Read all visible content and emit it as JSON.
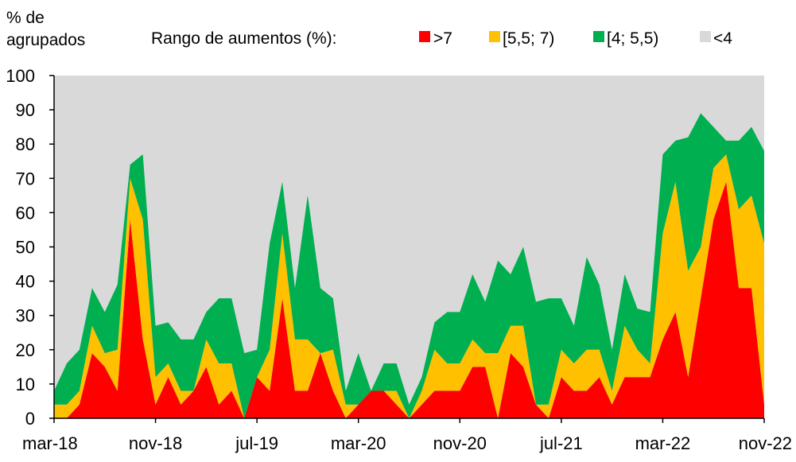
{
  "chart_data": {
    "type": "area",
    "stacked": true,
    "ylabel_lines": [
      "% de",
      "agrupados"
    ],
    "legend_title": "Rango de aumentos (%):",
    "ylim": [
      0,
      100
    ],
    "y_ticks": [
      "0",
      "10",
      "20",
      "30",
      "40",
      "50",
      "60",
      "70",
      "80",
      "90",
      "100"
    ],
    "x_tick_labels": [
      "mar-18",
      "nov-18",
      "jul-19",
      "mar-20",
      "nov-20",
      "jul-21",
      "mar-22",
      "nov-22"
    ],
    "x_tick_indices": [
      0,
      8,
      16,
      24,
      32,
      40,
      48,
      56
    ],
    "legend_placement": "top",
    "grid": false,
    "background_color": "#d9d9d9",
    "total_color": "#d9d9d9",
    "total_name": "<4",
    "series": [
      {
        "name": ">7",
        "color": "#ff0000",
        "values": [
          0,
          0,
          4,
          19,
          15,
          8,
          58,
          23,
          4,
          12,
          4,
          8,
          15,
          4,
          8,
          0,
          12,
          8,
          35,
          8,
          8,
          19,
          8,
          0,
          4,
          8,
          8,
          4,
          0,
          4,
          8,
          8,
          8,
          15,
          15,
          0,
          19,
          15,
          4,
          0,
          12,
          8,
          8,
          12,
          4,
          12,
          12,
          12,
          23,
          31,
          12,
          35,
          58,
          69,
          38,
          38,
          4
        ]
      },
      {
        "name": "[5,5; 7)",
        "color": "#ffc000",
        "values": [
          4,
          4,
          4,
          8,
          4,
          12,
          12,
          35,
          8,
          4,
          4,
          0,
          8,
          12,
          8,
          0,
          0,
          12,
          19,
          15,
          15,
          0,
          12,
          4,
          0,
          0,
          0,
          4,
          0,
          4,
          12,
          8,
          8,
          8,
          4,
          19,
          8,
          12,
          0,
          4,
          8,
          8,
          12,
          8,
          4,
          15,
          8,
          4,
          31,
          38,
          31,
          15,
          15,
          8,
          23,
          27,
          47
        ]
      },
      {
        "name": "[4; 5,5)",
        "color": "#00b050",
        "values": [
          4,
          12,
          12,
          11,
          12,
          19,
          4,
          19,
          15,
          12,
          15,
          15,
          8,
          19,
          19,
          19,
          8,
          31,
          15,
          15,
          42,
          19,
          15,
          4,
          15,
          0,
          8,
          8,
          4,
          4,
          8,
          15,
          15,
          19,
          15,
          27,
          15,
          23,
          30,
          31,
          15,
          11,
          27,
          19,
          12,
          15,
          12,
          15,
          23,
          12,
          39,
          39,
          12,
          4,
          20,
          20,
          27
        ]
      }
    ],
    "legend": [
      {
        "label": ">7",
        "color": "#ff0000"
      },
      {
        "label": "[5,5; 7)",
        "color": "#ffc000"
      },
      {
        "label": "[4; 5,5)",
        "color": "#00b050"
      },
      {
        "label": "<4",
        "color": "#d9d9d9"
      }
    ]
  }
}
